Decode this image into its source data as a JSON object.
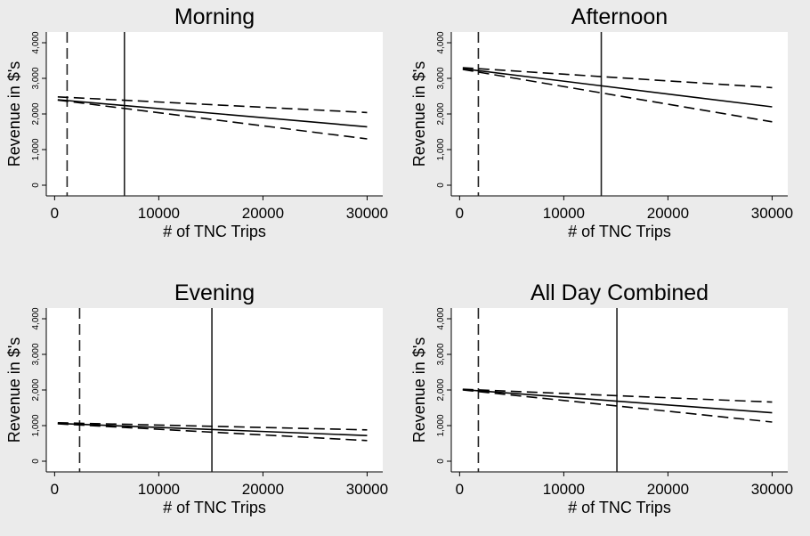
{
  "chart_data": [
    {
      "type": "line",
      "title": "Morning",
      "xlabel": "# of TNC Trips",
      "ylabel": "Revenue in $'s",
      "xlim": [
        -800,
        31500
      ],
      "ylim": [
        -300,
        4300
      ],
      "xticks": [
        0,
        10000,
        20000,
        30000
      ],
      "xtick_labels": [
        "0",
        "10000",
        "20000",
        "30000"
      ],
      "yticks": [
        0,
        1000,
        2000,
        3000,
        4000
      ],
      "ytick_labels": [
        "0",
        "1,000",
        "2,000",
        "3,000",
        "4,000"
      ],
      "grid": false,
      "series": [
        {
          "style": "solid",
          "x": [
            300,
            30000
          ],
          "y": [
            2400,
            1640
          ]
        },
        {
          "style": "dashed",
          "x": [
            300,
            30000
          ],
          "y": [
            2480,
            2040
          ]
        },
        {
          "style": "dashed",
          "x": [
            300,
            30000
          ],
          "y": [
            2390,
            1300
          ]
        }
      ],
      "vlines": [
        {
          "style": "dashed",
          "x": 1200
        },
        {
          "style": "solid",
          "x": 6700
        }
      ]
    },
    {
      "type": "line",
      "title": "Afternoon",
      "xlabel": "# of TNC Trips",
      "ylabel": "Revenue in $'s",
      "xlim": [
        -800,
        31500
      ],
      "ylim": [
        -300,
        4300
      ],
      "xticks": [
        0,
        10000,
        20000,
        30000
      ],
      "xtick_labels": [
        "0",
        "10000",
        "20000",
        "30000"
      ],
      "yticks": [
        0,
        1000,
        2000,
        3000,
        4000
      ],
      "ytick_labels": [
        "0",
        "1,000",
        "2,000",
        "3,000",
        "4,000"
      ],
      "grid": false,
      "series": [
        {
          "style": "solid",
          "x": [
            300,
            30000
          ],
          "y": [
            3270,
            2200
          ]
        },
        {
          "style": "dashed",
          "x": [
            300,
            30000
          ],
          "y": [
            3300,
            2740
          ]
        },
        {
          "style": "dashed",
          "x": [
            300,
            30000
          ],
          "y": [
            3250,
            1780
          ]
        }
      ],
      "vlines": [
        {
          "style": "dashed",
          "x": 1800
        },
        {
          "style": "solid",
          "x": 13600
        }
      ]
    },
    {
      "type": "line",
      "title": "Evening",
      "xlabel": "# of TNC Trips",
      "ylabel": "Revenue in $'s",
      "xlim": [
        -800,
        31500
      ],
      "ylim": [
        -300,
        4300
      ],
      "xticks": [
        0,
        10000,
        20000,
        30000
      ],
      "xtick_labels": [
        "0",
        "10000",
        "20000",
        "30000"
      ],
      "yticks": [
        0,
        1000,
        2000,
        3000,
        4000
      ],
      "ytick_labels": [
        "0",
        "1,000",
        "2,000",
        "3,000",
        "4,000"
      ],
      "grid": false,
      "series": [
        {
          "style": "solid",
          "x": [
            300,
            30000
          ],
          "y": [
            1060,
            720
          ]
        },
        {
          "style": "dashed",
          "x": [
            300,
            30000
          ],
          "y": [
            1080,
            880
          ]
        },
        {
          "style": "dashed",
          "x": [
            300,
            30000
          ],
          "y": [
            1050,
            580
          ]
        }
      ],
      "vlines": [
        {
          "style": "dashed",
          "x": 2400
        },
        {
          "style": "solid",
          "x": 15100
        }
      ]
    },
    {
      "type": "line",
      "title": "All Day Combined",
      "xlabel": "# of TNC Trips",
      "ylabel": "Revenue in $'s",
      "xlim": [
        -800,
        31500
      ],
      "ylim": [
        -300,
        4300
      ],
      "xticks": [
        0,
        10000,
        20000,
        30000
      ],
      "xtick_labels": [
        "0",
        "10000",
        "20000",
        "30000"
      ],
      "yticks": [
        0,
        1000,
        2000,
        3000,
        4000
      ],
      "ytick_labels": [
        "0",
        "1,000",
        "2,000",
        "3,000",
        "4,000"
      ],
      "grid": false,
      "series": [
        {
          "style": "solid",
          "x": [
            300,
            30000
          ],
          "y": [
            2010,
            1360
          ]
        },
        {
          "style": "dashed",
          "x": [
            300,
            30000
          ],
          "y": [
            2020,
            1660
          ]
        },
        {
          "style": "dashed",
          "x": [
            300,
            30000
          ],
          "y": [
            2000,
            1100
          ]
        }
      ],
      "vlines": [
        {
          "style": "dashed",
          "x": 1800
        },
        {
          "style": "solid",
          "x": 15100
        }
      ]
    }
  ]
}
